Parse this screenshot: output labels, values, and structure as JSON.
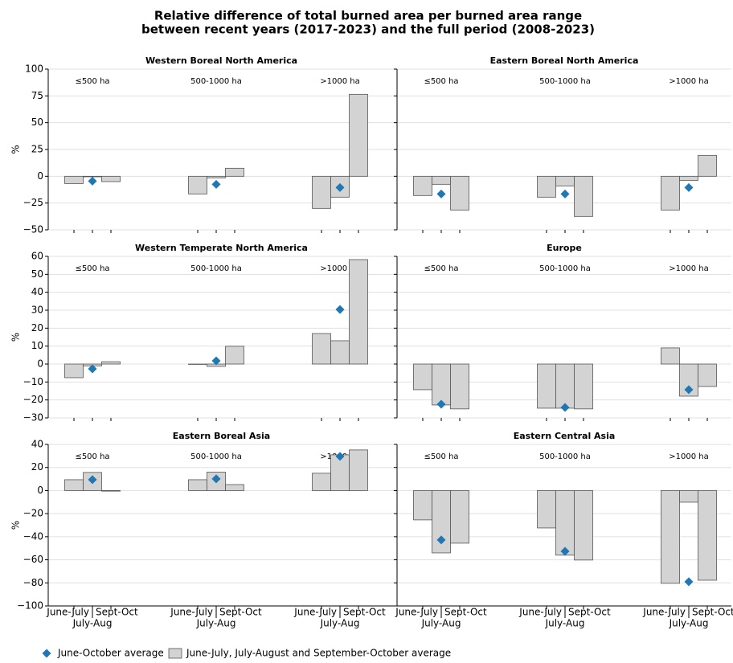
{
  "title": [
    "Relative difference of total burned area per burned area range",
    "between recent years (2017-2023) and the full period (2008-2023)"
  ],
  "categories": [
    "June-July",
    "July-Aug",
    "Sept-Oct"
  ],
  "legend": [
    {
      "name": "June-October average",
      "color": "#1f77b4",
      "marker": "diamond"
    },
    {
      "name": "June-July, July-August and September-October average",
      "color": "#d3d3d3"
    }
  ],
  "chart_data": [
    {
      "type": "bar",
      "title": "Western Boreal North America",
      "groups": [
        "≤500 ha",
        "500-1000 ha",
        ">1000 ha"
      ],
      "ylabel": "%",
      "ylim": [
        -50,
        100
      ],
      "yticks": [
        {
          "value": -50,
          "label": "−50"
        },
        {
          "value": -25,
          "label": "−25"
        },
        0,
        25,
        50,
        75,
        100
      ],
      "grid": true,
      "bars": [
        [
          -6.8,
          -0.5,
          -5
        ],
        [
          -16.5,
          -1.5,
          7.5
        ],
        [
          -30,
          -19.5,
          76.5
        ]
      ],
      "average": [
        -4.5,
        -7.5,
        -10.5
      ]
    },
    {
      "type": "bar",
      "title": "Eastern Boreal North America",
      "groups": [
        "≤500 ha",
        "500-1000 ha",
        ">1000 ha"
      ],
      "ylim": [
        -50,
        100
      ],
      "grid": true,
      "bars": [
        [
          -18,
          -7.5,
          -31.5
        ],
        [
          -19.5,
          -9,
          -37.5
        ],
        [
          -31.5,
          -3.8,
          19.5
        ]
      ],
      "average": [
        -16.5,
        -16.5,
        -10.5
      ]
    },
    {
      "type": "bar",
      "title": "Western Temperate North America",
      "groups": [
        "≤500 ha",
        "500-1000 ha",
        ">1000 ha"
      ],
      "ylabel": "%",
      "ylim": [
        -30,
        60
      ],
      "yticks": [
        {
          "value": -30,
          "label": "−30"
        },
        {
          "value": -20,
          "label": "−20"
        },
        {
          "value": -10,
          "label": "−10"
        },
        0,
        10,
        20,
        30,
        40,
        50,
        60
      ],
      "grid": true,
      "bars": [
        [
          -7.6,
          -1,
          1.3
        ],
        [
          -0.2,
          -1.3,
          9.9
        ],
        [
          17,
          13,
          58.2
        ]
      ],
      "average": [
        -2.7,
        1.8,
        30.4
      ]
    },
    {
      "type": "bar",
      "title": "Europe",
      "groups": [
        "≤500 ha",
        "500-1000 ha",
        ">1000 ha"
      ],
      "ylim": [
        -30,
        60
      ],
      "grid": true,
      "bars": [
        [
          -14.3,
          -22.8,
          -25
        ],
        [
          -24.6,
          -24.6,
          -25
        ],
        [
          9,
          -17.9,
          -12.5
        ]
      ],
      "average": [
        -22.4,
        -24.2,
        -14.3
      ]
    },
    {
      "type": "bar",
      "title": "Eastern Boreal Asia",
      "groups": [
        "≤500 ha",
        "500-1000 ha",
        ">1000 ha"
      ],
      "ylabel": "%",
      "ylim": [
        -100,
        40
      ],
      "yticks": [
        {
          "value": -100,
          "label": "−100"
        },
        {
          "value": -80,
          "label": "−80"
        },
        {
          "value": -60,
          "label": "−60"
        },
        {
          "value": -40,
          "label": "−40"
        },
        {
          "value": -20,
          "label": "−20"
        },
        0,
        20,
        40
      ],
      "grid": true,
      "bars": [
        [
          9.4,
          15.7,
          -0.5
        ],
        [
          9.4,
          16,
          5.2
        ],
        [
          15,
          31,
          35.2
        ]
      ],
      "average": [
        9.4,
        10.1,
        29.6
      ]
    },
    {
      "type": "bar",
      "title": "Eastern Central Asia",
      "groups": [
        "≤500 ha",
        "500-1000 ha",
        ">1000 ha"
      ],
      "ylim": [
        -100,
        40
      ],
      "grid": true,
      "bars": [
        [
          -25.4,
          -54,
          -45.6
        ],
        [
          -32.4,
          -56,
          -60.2
        ],
        [
          -80.4,
          -10.1,
          -77.7
        ]
      ],
      "average": [
        -42.8,
        -52.6,
        -79
      ]
    }
  ]
}
